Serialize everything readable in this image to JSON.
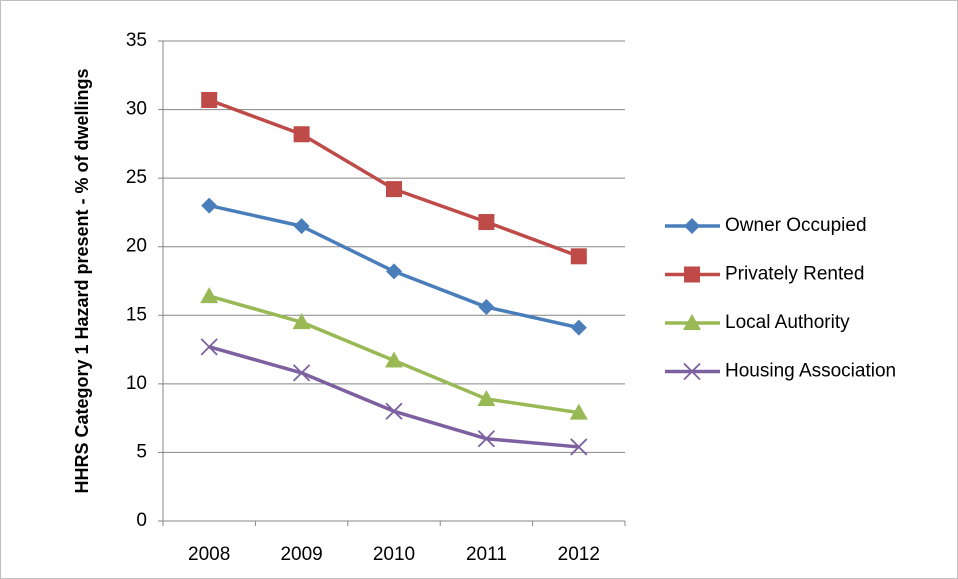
{
  "chart_data": {
    "type": "line",
    "y_label": "HHRS Category 1 Hazard present - % of dwellings",
    "categories": [
      "2008",
      "2009",
      "2010",
      "2011",
      "2012"
    ],
    "series": [
      {
        "name": "Owner Occupied",
        "color": "#4a7ebb",
        "marker": "diamond",
        "values": [
          23.0,
          21.5,
          18.2,
          15.6,
          14.1
        ]
      },
      {
        "name": "Privately Rented",
        "color": "#be4b48",
        "marker": "square",
        "values": [
          30.7,
          28.2,
          24.2,
          21.8,
          19.3
        ]
      },
      {
        "name": "Local Authority",
        "color": "#98b954",
        "marker": "triangle",
        "values": [
          16.4,
          14.5,
          11.7,
          8.9,
          7.9
        ]
      },
      {
        "name": "Housing Association",
        "color": "#7d60a0",
        "marker": "x",
        "values": [
          12.7,
          10.8,
          8.0,
          6.0,
          5.4
        ]
      }
    ],
    "ylim": [
      0,
      35
    ],
    "yticks": [
      0,
      5,
      10,
      15,
      20,
      25,
      30,
      35
    ],
    "grid": true,
    "legend": "right"
  }
}
